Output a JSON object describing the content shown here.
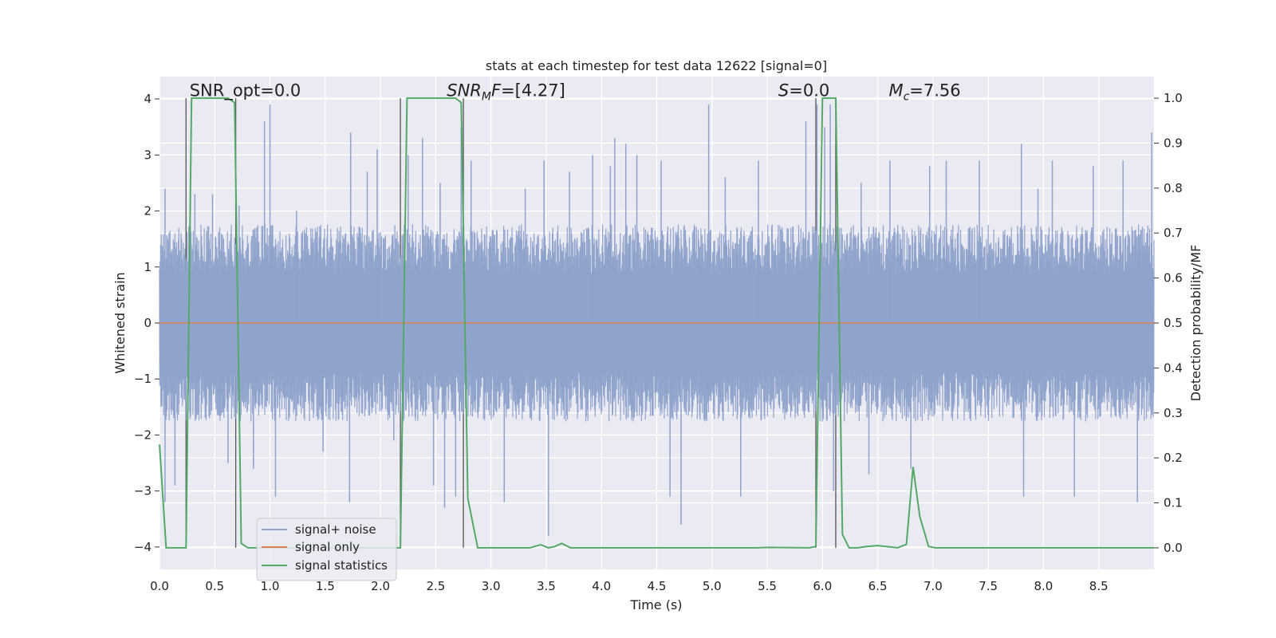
{
  "chart_data": {
    "type": "line",
    "title": "stats at each timestep for test data 12622 [signal=0]",
    "xlabel": "Time (s)",
    "ylabel": "Whitened strain",
    "y2label": "Detection probability/MF",
    "xlim": [
      0,
      9.0
    ],
    "ylim": [
      -4.4,
      4.4
    ],
    "y2lim": [
      -0.048,
      1.048
    ],
    "x_ticks": [
      0.0,
      0.5,
      1.0,
      1.5,
      2.0,
      2.5,
      3.0,
      3.5,
      4.0,
      4.5,
      5.0,
      5.5,
      6.0,
      6.5,
      7.0,
      7.5,
      8.0,
      8.5
    ],
    "x_tick_labels": [
      "0.0",
      "0.5",
      "1.0",
      "1.5",
      "2.0",
      "2.5",
      "3.0",
      "3.5",
      "4.0",
      "4.5",
      "5.0",
      "5.5",
      "6.0",
      "6.5",
      "7.0",
      "7.5",
      "8.0",
      "8.5"
    ],
    "y_ticks": [
      -4,
      -3,
      -2,
      -1,
      0,
      1,
      2,
      3,
      4
    ],
    "y_tick_labels": [
      "−4",
      "−3",
      "−2",
      "−1",
      "0",
      "1",
      "2",
      "3",
      "4"
    ],
    "y2_ticks": [
      0.0,
      0.1,
      0.2,
      0.3,
      0.4,
      0.5,
      0.6,
      0.7,
      0.8,
      0.9,
      1.0
    ],
    "y2_tick_labels": [
      "0.0",
      "0.1",
      "0.2",
      "0.3",
      "0.4",
      "0.5",
      "0.6",
      "0.7",
      "0.8",
      "0.9",
      "1.0"
    ],
    "grid": true,
    "legend_position": "lower-left",
    "annotations": [
      {
        "text": "SNR_opt=0.0",
        "x": 0.2,
        "y": 4.05,
        "style": "normal"
      },
      {
        "base": "SNR",
        "sub": "M",
        "tail": "F=[4.27]",
        "x": 2.6,
        "y": 4.05,
        "style": "italic-sub"
      },
      {
        "base": "S",
        "sub": "",
        "tail": "=0.0",
        "x": 5.6,
        "y": 4.05,
        "style": "italic-sub"
      },
      {
        "base": "M",
        "sub": "c",
        "tail": "=7.56",
        "x": 6.6,
        "y": 4.05,
        "style": "italic-sub"
      }
    ],
    "vertical_markers": [
      0.24,
      0.69,
      2.18,
      2.75,
      5.94,
      6.12
    ],
    "series": [
      {
        "name": "signal+ noise",
        "color": "#8fa3cc",
        "axis": "left",
        "description": "whitened strain, noise only, amplitude roughly within ±2 with spikes to ±3.9",
        "sample_rate": 2048,
        "envelope": [
          1.6,
          -1.6
        ],
        "spikes": [
          [
            0.05,
            2.4
          ],
          [
            0.05,
            -3.2
          ],
          [
            0.14,
            -2.9
          ],
          [
            0.32,
            2.3
          ],
          [
            0.48,
            2.3
          ],
          [
            0.62,
            -2.5
          ],
          [
            0.72,
            2.1
          ],
          [
            0.85,
            -2.6
          ],
          [
            0.95,
            3.6
          ],
          [
            1.0,
            3.9
          ],
          [
            1.05,
            -3.1
          ],
          [
            1.24,
            2.0
          ],
          [
            1.48,
            -2.3
          ],
          [
            1.72,
            -3.2
          ],
          [
            1.73,
            3.4
          ],
          [
            1.88,
            2.7
          ],
          [
            1.97,
            3.1
          ],
          [
            2.12,
            -2.1
          ],
          [
            2.25,
            3.0
          ],
          [
            2.38,
            3.3
          ],
          [
            2.48,
            -2.9
          ],
          [
            2.54,
            2.5
          ],
          [
            2.58,
            -3.3
          ],
          [
            2.68,
            -3.1
          ],
          [
            2.73,
            3.5
          ],
          [
            2.82,
            2.9
          ],
          [
            3.12,
            -3.2
          ],
          [
            3.31,
            2.4
          ],
          [
            3.48,
            2.9
          ],
          [
            3.52,
            -3.8
          ],
          [
            3.71,
            2.7
          ],
          [
            3.92,
            3.0
          ],
          [
            4.08,
            2.8
          ],
          [
            4.12,
            3.3
          ],
          [
            4.22,
            3.2
          ],
          [
            4.32,
            3.0
          ],
          [
            4.54,
            2.9
          ],
          [
            4.62,
            -3.1
          ],
          [
            4.72,
            -3.6
          ],
          [
            4.97,
            3.9
          ],
          [
            5.12,
            2.6
          ],
          [
            5.26,
            -3.1
          ],
          [
            5.42,
            2.9
          ],
          [
            5.85,
            3.6
          ],
          [
            5.95,
            3.9
          ],
          [
            6.02,
            3.5
          ],
          [
            6.07,
            3.9
          ],
          [
            6.1,
            -3.0
          ],
          [
            6.35,
            2.5
          ],
          [
            6.42,
            -2.7
          ],
          [
            6.61,
            2.9
          ],
          [
            6.8,
            -2.6
          ],
          [
            6.97,
            2.8
          ],
          [
            7.12,
            2.9
          ],
          [
            7.42,
            2.9
          ],
          [
            7.8,
            3.2
          ],
          [
            7.82,
            -3.1
          ],
          [
            7.95,
            2.4
          ],
          [
            8.08,
            2.9
          ],
          [
            8.28,
            -3.1
          ],
          [
            8.45,
            2.8
          ],
          [
            8.72,
            2.9
          ],
          [
            8.85,
            -3.2
          ],
          [
            8.98,
            3.4
          ]
        ]
      },
      {
        "name": "signal only",
        "color": "#dd8452",
        "axis": "left",
        "x": [
          0,
          9.0
        ],
        "y": [
          0,
          0
        ]
      },
      {
        "name": "signal statistics",
        "color": "#55a868",
        "axis": "right",
        "x": [
          0.0,
          0.06,
          0.24,
          0.29,
          0.34,
          0.62,
          0.68,
          0.74,
          0.8,
          2.1,
          2.18,
          2.24,
          2.68,
          2.73,
          2.79,
          2.88,
          3.35,
          3.45,
          3.52,
          3.58,
          3.64,
          3.72,
          3.8,
          5.4,
          5.5,
          5.88,
          5.94,
          6.0,
          6.12,
          6.18,
          6.24,
          6.32,
          6.4,
          6.5,
          6.68,
          6.76,
          6.82,
          6.88,
          6.96,
          7.02,
          7.1,
          9.0
        ],
        "y": [
          0.23,
          0.0,
          0.0,
          1.0,
          1.0,
          1.0,
          0.99,
          0.01,
          0.0,
          0.0,
          0.0,
          1.0,
          1.0,
          0.99,
          0.11,
          0.0,
          0.0,
          0.007,
          0.0,
          0.003,
          0.01,
          0.0,
          0.0,
          0.0,
          0.001,
          0.0,
          0.003,
          1.0,
          1.0,
          0.03,
          0.0,
          0.0,
          0.003,
          0.005,
          0.0,
          0.008,
          0.18,
          0.07,
          0.003,
          0.0,
          0.0,
          0.0
        ]
      }
    ]
  }
}
